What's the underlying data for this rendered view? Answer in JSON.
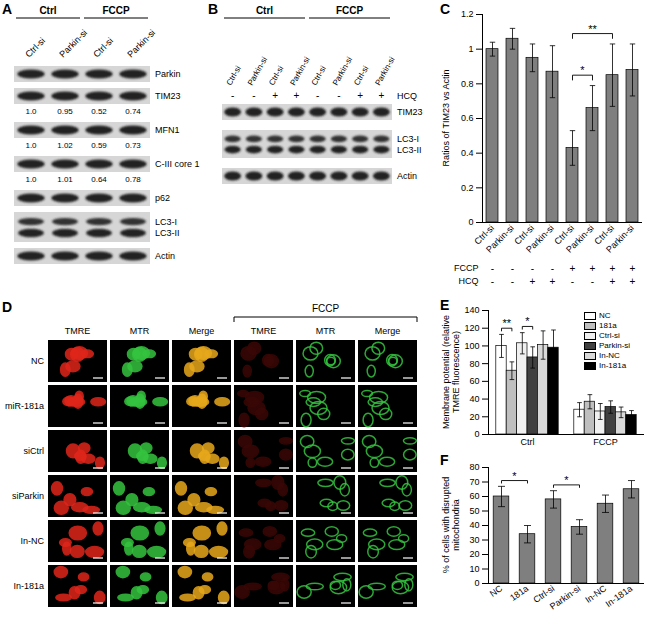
{
  "chart_data": [
    {
      "panel_label": "C",
      "type": "bar",
      "ylabel": "Ratios of TIM23 vs Actin",
      "categories": [
        "Ctrl-si",
        "Parkin-si",
        "Ctrl-si",
        "Parkin-si",
        "Ctrl-si",
        "Parkin-si",
        "Ctrl-si",
        "Parkin-si"
      ],
      "values": [
        1,
        1.06,
        0.95,
        0.87,
        0.43,
        0.66,
        0.85,
        0.88
      ],
      "errors": [
        0.04,
        0.06,
        0.08,
        0.15,
        0.1,
        0.13,
        0.18,
        0.15
      ],
      "color": "#7f7f7f",
      "ylim": [
        0,
        1.2
      ],
      "yticks": [
        0,
        0.2,
        0.4,
        0.6,
        0.8,
        1,
        1.2
      ],
      "conditions": [
        {
          "name": "FCCP",
          "values": [
            "-",
            "-",
            "-",
            "-",
            "+",
            "+",
            "+",
            "+"
          ]
        },
        {
          "name": "HCQ",
          "values": [
            "-",
            "-",
            "+",
            "+",
            "-",
            "-",
            "+",
            "+"
          ]
        }
      ],
      "significance": [
        {
          "bars": [
            4,
            5
          ],
          "label": "*"
        },
        {
          "bars": [
            4,
            6
          ],
          "label": "**"
        }
      ]
    },
    {
      "panel_label": "E",
      "type": "bar",
      "ylabel": "Membrane potential (relative TMRE fluorescence)",
      "categories": [
        "Ctrl",
        "FCCP"
      ],
      "series": [
        {
          "name": "NC",
          "color": "#ffffff",
          "values": [
            100,
            28
          ],
          "errors": [
            13,
            8
          ]
        },
        {
          "name": "181a",
          "color": "#bfbfbf",
          "values": [
            72,
            37
          ],
          "errors": [
            10,
            8
          ]
        },
        {
          "name": "Ctrl-si",
          "color": "#f0f0f0",
          "values": [
            103,
            26
          ],
          "errors": [
            12,
            9
          ]
        },
        {
          "name": "Parkin-si",
          "color": "#404040",
          "values": [
            87,
            31
          ],
          "errors": [
            12,
            7
          ]
        },
        {
          "name": "In-NC",
          "color": "#d9d9d9",
          "values": [
            101,
            25
          ],
          "errors": [
            16,
            6
          ]
        },
        {
          "name": "In-181a",
          "color": "#000000",
          "values": [
            98,
            22
          ],
          "errors": [
            20,
            5
          ]
        }
      ],
      "ylim": [
        0,
        140
      ],
      "yticks": [
        0,
        20,
        40,
        60,
        80,
        100,
        120,
        140
      ],
      "legend": "top-right",
      "significance": [
        {
          "category": 0,
          "series": [
            0,
            1
          ],
          "label": "**"
        },
        {
          "category": 0,
          "series": [
            2,
            3
          ],
          "label": "*"
        }
      ]
    },
    {
      "panel_label": "F",
      "type": "bar",
      "ylabel": "% of cells with disrupted mitochondria",
      "categories": [
        "NC",
        "181a",
        "Ctrl-si",
        "Parkin-si",
        "In-NC",
        "In-181a"
      ],
      "values": [
        60,
        34,
        58,
        39,
        55,
        65
      ],
      "errors": [
        7,
        6,
        6,
        5,
        6,
        6
      ],
      "color": "#7f7f7f",
      "ylim": [
        0,
        80
      ],
      "yticks": [
        0,
        10,
        20,
        30,
        40,
        50,
        60,
        70,
        80
      ],
      "significance": [
        {
          "bars": [
            0,
            1
          ],
          "label": "*"
        },
        {
          "bars": [
            2,
            3
          ],
          "label": "*"
        }
      ]
    }
  ],
  "blots": [
    {
      "panel_label": "A",
      "groups": [
        {
          "label": "Ctrl",
          "lanes": [
            "Ctrl-si",
            "Parkin-si"
          ]
        },
        {
          "label": "FCCP",
          "lanes": [
            "Ctrl-si",
            "Parkin-si"
          ]
        }
      ],
      "rows": [
        {
          "label": "Parkin"
        },
        {
          "label": "TIM23",
          "quant": [
            "1.0",
            "0.95",
            "0.52",
            "0.74"
          ]
        },
        {
          "label": "MFN1",
          "quant": [
            "1.0",
            "1.02",
            "0.59",
            "0.73"
          ]
        },
        {
          "label": "C-III core 1",
          "quant": [
            "1.0",
            "1.01",
            "0.64",
            "0.78"
          ]
        },
        {
          "label": "p62"
        },
        {
          "labels": [
            "LC3-I",
            "LC3-II"
          ]
        },
        {
          "label": "Actin"
        }
      ]
    },
    {
      "panel_label": "B",
      "groups": [
        {
          "label": "Ctrl",
          "lanes": [
            "Ctrl-si",
            "Parkin-si",
            "Ctrl-si",
            "Parkin-si"
          ]
        },
        {
          "label": "FCCP",
          "lanes": [
            "Ctrl-si",
            "Parkin-si",
            "Ctrl-si",
            "Parkin-si"
          ]
        }
      ],
      "treatment": {
        "name": "HCQ",
        "values": [
          "-",
          "-",
          "+",
          "+",
          "-",
          "-",
          "+",
          "+"
        ]
      },
      "rows": [
        {
          "label": "TIM23"
        },
        {
          "labels": [
            "LC3-I",
            "LC3-II"
          ]
        },
        {
          "label": "Actin"
        }
      ]
    }
  ],
  "images": {
    "panel_label": "D",
    "column_groups": [
      {
        "label": null,
        "columns": [
          "TMRE",
          "MTR",
          "Merge"
        ]
      },
      {
        "label": "FCCP",
        "columns": [
          "TMRE",
          "MTR",
          "Merge"
        ]
      }
    ],
    "rows": [
      "NC",
      "miR-181a",
      "siCtrl",
      "siParkin",
      "In-NC",
      "In-181a"
    ]
  }
}
